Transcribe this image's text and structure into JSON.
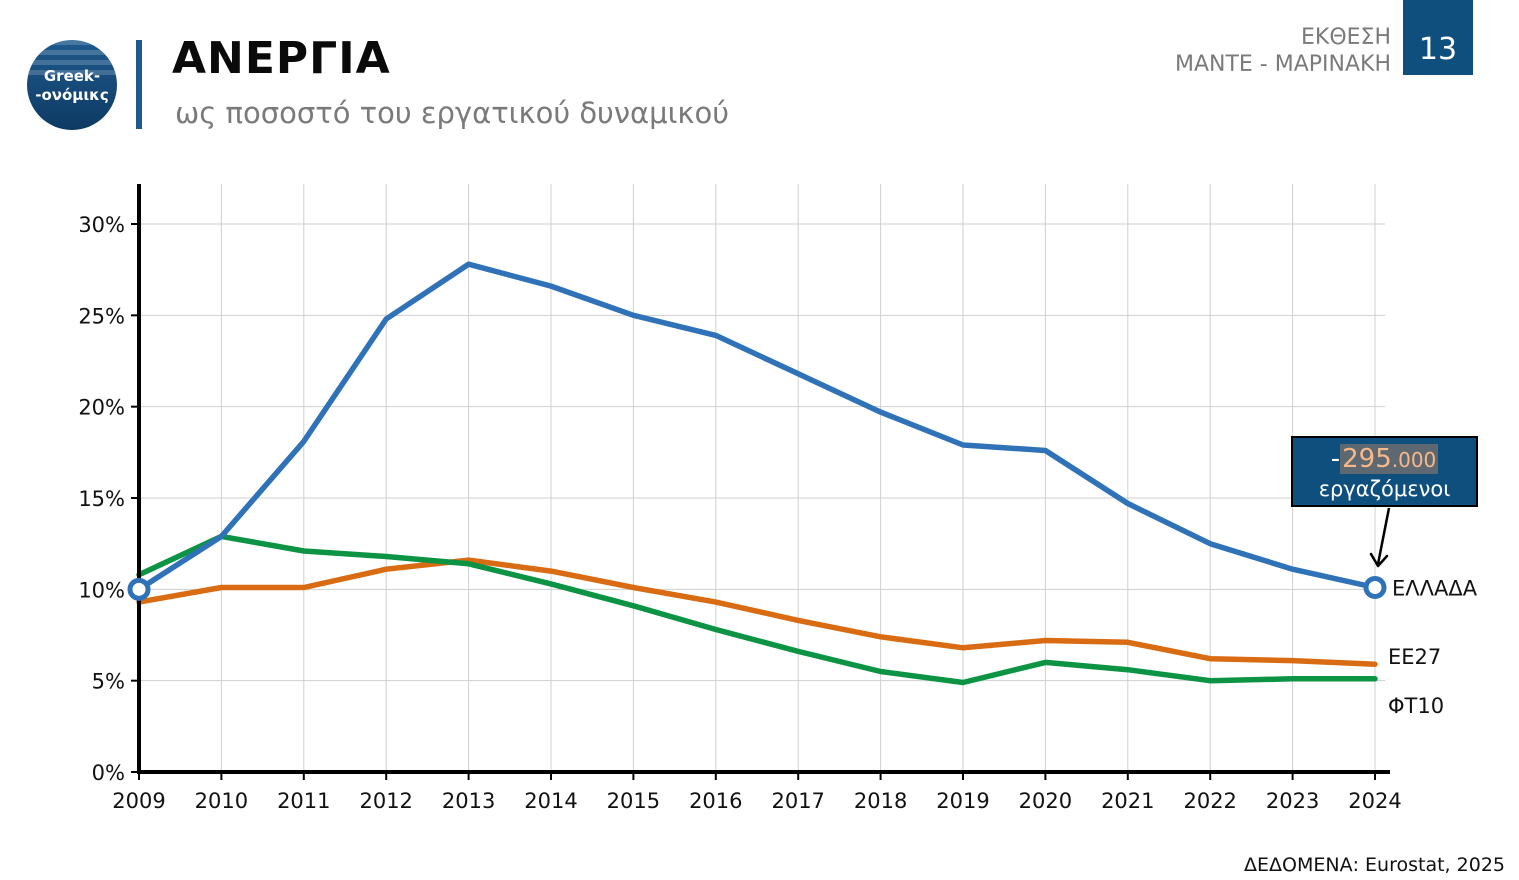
{
  "header": {
    "logo_line1": "Greek-",
    "logo_line2": "-ονόμικς",
    "title": "ΑΝΕΡΓΙΑ",
    "subtitle": "ως ποσοστό του εργατικού δυναμικού",
    "report_line1": "ΕΚΘΕΣΗ",
    "report_line2": "ΜΑΝΤΕ - ΜΑΡΙΝΑΚΗ",
    "page_number": "13"
  },
  "callout": {
    "prefix": "-",
    "number_main": "295",
    "number_suffix": ".000",
    "label": "εργαζόμενοι"
  },
  "source": "ΔΕΔΟΜΕΝΑ: Eurostat, 2025",
  "colors": {
    "greece": "#2f72b8",
    "eu27": "#d96c12",
    "ft10": "#0c9444",
    "accent": "#0f4f7e"
  },
  "chart_data": {
    "type": "line",
    "title": "ΑΝΕΡΓΙΑ",
    "subtitle": "ως ποσοστό του εργατικού δυναμικού",
    "x": [
      2009,
      2010,
      2011,
      2012,
      2013,
      2014,
      2015,
      2016,
      2017,
      2018,
      2019,
      2020,
      2021,
      2022,
      2023,
      2024
    ],
    "ylim": [
      0,
      32
    ],
    "yticks": [
      0,
      5,
      10,
      15,
      20,
      25,
      30
    ],
    "ytick_labels": [
      "0%",
      "5%",
      "10%",
      "15%",
      "20%",
      "25%",
      "30%"
    ],
    "series": [
      {
        "name": "ΕΛΛΑΔΑ",
        "color": "#2f72b8",
        "values": [
          10.0,
          12.9,
          18.1,
          24.8,
          27.8,
          26.6,
          25.0,
          23.9,
          21.8,
          19.7,
          17.9,
          17.6,
          14.7,
          12.5,
          11.1,
          10.1
        ]
      },
      {
        "name": "ΕΕ27",
        "color": "#d96c12",
        "values": [
          9.3,
          10.1,
          10.1,
          11.1,
          11.6,
          11.0,
          10.1,
          9.3,
          8.3,
          7.4,
          6.8,
          7.2,
          7.1,
          6.2,
          6.1,
          5.9
        ]
      },
      {
        "name": "ΦΤ10",
        "color": "#0c9444",
        "values": [
          10.8,
          12.9,
          12.1,
          11.8,
          11.4,
          10.3,
          9.1,
          7.8,
          6.6,
          5.5,
          4.9,
          6.0,
          5.6,
          5.0,
          5.1,
          5.1
        ]
      }
    ]
  }
}
